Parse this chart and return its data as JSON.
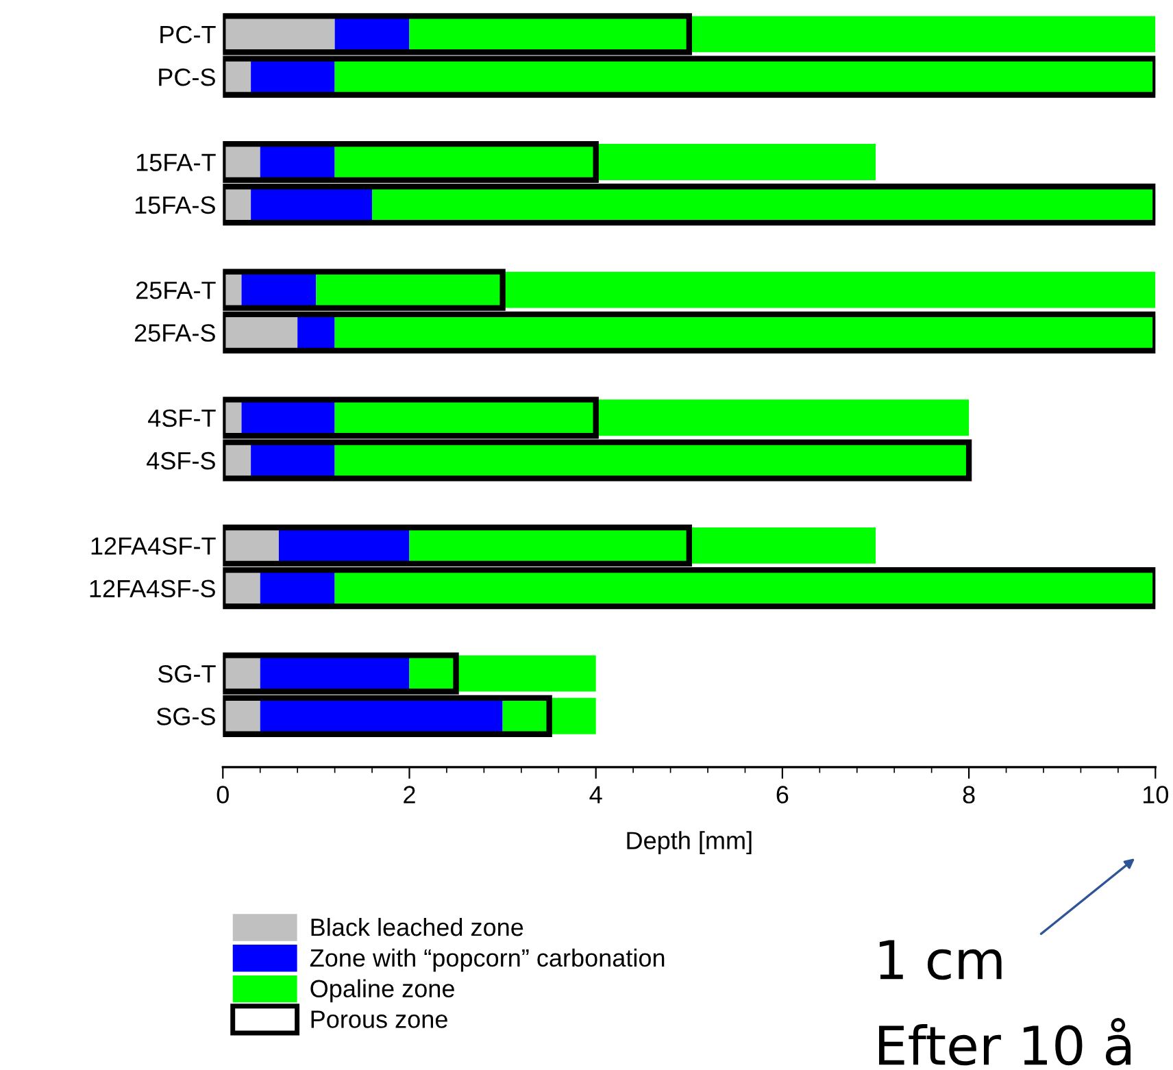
{
  "chart_data": [
    {
      "type": "bar",
      "orientation": "horizontal",
      "stacked": true,
      "categories": [
        "PC-T",
        "PC-S",
        null,
        "15FA-T",
        "15FA-S",
        null,
        "25FA-T",
        "25FA-S",
        null,
        "4SF-T",
        "4SF-S",
        null,
        "12FA4SF-T",
        "12FA4SF-S",
        null,
        "SG-T",
        "SG-S"
      ],
      "series": [
        {
          "name": "Black leached zone",
          "color": "#c0c0c0",
          "values": [
            1.2,
            0.3,
            null,
            0.4,
            0.3,
            null,
            0.2,
            0.8,
            null,
            0.2,
            0.3,
            null,
            0.6,
            0.4,
            null,
            0.4,
            0.4
          ]
        },
        {
          "name": "Zone with “popcorn” carbonation",
          "color": "#0000ff",
          "values": [
            0.8,
            0.9,
            null,
            0.8,
            1.3,
            null,
            0.8,
            0.4,
            null,
            1.0,
            0.9,
            null,
            1.4,
            0.8,
            null,
            1.6,
            2.6
          ]
        },
        {
          "name": "Opaline zone",
          "color": "#00ff00",
          "values": [
            8.0,
            8.8,
            null,
            5.8,
            8.4,
            null,
            9.0,
            8.8,
            null,
            6.8,
            6.8,
            null,
            5.0,
            8.8,
            null,
            2.0,
            1.0
          ]
        }
      ],
      "xlabel": "Depth [mm]",
      "xlim": [
        0,
        10
      ],
      "xticks": [
        0,
        2,
        4,
        6,
        8,
        10
      ],
      "legend": "bottom left",
      "grid": false,
      "annotations": [
        "1 cm",
        "Efter 10 å"
      ]
    },
    {
      "type": "bar",
      "orientation": "horizontal",
      "categories": [
        null,
        null,
        null,
        null,
        null,
        null,
        null,
        null,
        null,
        null,
        null,
        null,
        null,
        null,
        null,
        null,
        null
      ],
      "series": [
        {
          "name": "Porous zone",
          "color": "#000000",
          "values": [
            5,
            10,
            null,
            4,
            10,
            null,
            3,
            10,
            null,
            4,
            8,
            null,
            5,
            10,
            null,
            2.5,
            3.5
          ]
        }
      ],
      "xlim": [
        0,
        10
      ],
      "xticks": [
        0,
        2,
        4,
        6,
        8,
        10
      ],
      "tick_labels": false,
      "legend": "bottom left"
    }
  ]
}
